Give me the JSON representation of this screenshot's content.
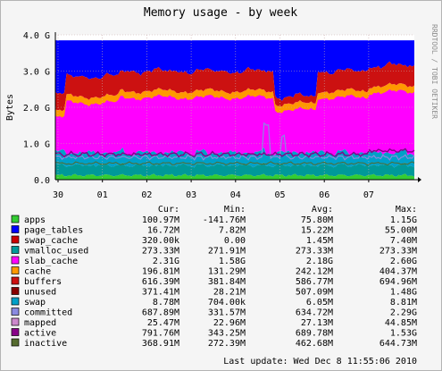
{
  "chart_data": {
    "type": "area",
    "title": "Memory usage - by week",
    "ylabel": "Bytes",
    "xlabel": "",
    "side_label": "RRDTOOL / TOBI OETIKER",
    "ylim": [
      0,
      4.0
    ],
    "y_ticks": [
      "0.0",
      "1.0 G",
      "2.0 G",
      "3.0 G",
      "4.0 G"
    ],
    "x_ticks": [
      "30",
      "01",
      "02",
      "03",
      "04",
      "05",
      "06",
      "07"
    ],
    "grid": true,
    "legend_headers": {
      "cur": "Cur:",
      "min": "Min:",
      "avg": "Avg:",
      "max": "Max:"
    },
    "legend": [
      {
        "name": "apps",
        "color": "#33cc33",
        "cur": "100.97M",
        "min": "-141.76M",
        "avg": "75.80M",
        "max": "1.15G"
      },
      {
        "name": "page_tables",
        "color": "#0000ff",
        "cur": "16.72M",
        "min": "7.82M",
        "avg": "15.22M",
        "max": "55.00M"
      },
      {
        "name": "swap_cache",
        "color": "#cc0000",
        "cur": "320.00k",
        "min": "0.00",
        "avg": "1.45M",
        "max": "7.40M"
      },
      {
        "name": "vmalloc_used",
        "color": "#009999",
        "cur": "273.33M",
        "min": "271.91M",
        "avg": "273.33M",
        "max": "273.33M"
      },
      {
        "name": "slab_cache",
        "color": "#ff00ff",
        "cur": "2.31G",
        "min": "1.58G",
        "avg": "2.18G",
        "max": "2.60G"
      },
      {
        "name": "cache",
        "color": "#ff9900",
        "cur": "196.81M",
        "min": "131.29M",
        "avg": "242.12M",
        "max": "404.37M"
      },
      {
        "name": "buffers",
        "color": "#cc1111",
        "cur": "616.39M",
        "min": "381.84M",
        "avg": "586.77M",
        "max": "694.96M"
      },
      {
        "name": "unused",
        "color": "#880000",
        "cur": "371.41M",
        "min": "28.21M",
        "avg": "507.09M",
        "max": "1.48G"
      },
      {
        "name": "swap",
        "color": "#00a0c8",
        "cur": "8.78M",
        "min": "704.00k",
        "avg": "6.05M",
        "max": "8.81M"
      },
      {
        "name": "committed",
        "color": "#8a8ae0",
        "cur": "687.89M",
        "min": "331.57M",
        "avg": "634.72M",
        "max": "2.29G"
      },
      {
        "name": "mapped",
        "color": "#cc88cc",
        "cur": "25.47M",
        "min": "22.96M",
        "avg": "27.13M",
        "max": "44.85M"
      },
      {
        "name": "active",
        "color": "#880088",
        "cur": "791.76M",
        "min": "343.25M",
        "avg": "689.78M",
        "max": "1.53G"
      },
      {
        "name": "inactive",
        "color": "#556b2f",
        "cur": "368.91M",
        "min": "272.39M",
        "avg": "462.68M",
        "max": "644.73M"
      }
    ],
    "stack_order": [
      "apps",
      "vmalloc_used",
      "cache",
      "slab_cache",
      "buffers",
      "swap_cache",
      "page_tables",
      "unused"
    ],
    "line_series": [
      "swap",
      "committed",
      "mapped",
      "active",
      "inactive"
    ],
    "last_update": "Last update: Wed Dec  8 11:55:06 2010"
  }
}
